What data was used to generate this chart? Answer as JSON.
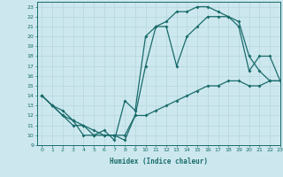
{
  "xlabel": "Humidex (Indice chaleur)",
  "xlim": [
    -0.5,
    23
  ],
  "ylim": [
    9,
    23.5
  ],
  "yticks": [
    9,
    10,
    11,
    12,
    13,
    14,
    15,
    16,
    17,
    18,
    19,
    20,
    21,
    22,
    23
  ],
  "xticks": [
    0,
    1,
    2,
    3,
    4,
    5,
    6,
    7,
    8,
    9,
    10,
    11,
    12,
    13,
    14,
    15,
    16,
    17,
    18,
    19,
    20,
    21,
    22,
    23
  ],
  "bg_color": "#cce8ee",
  "line_color": "#1a6b6b",
  "grid_color": "#b8d8e0",
  "line1_x": [
    0,
    1,
    2,
    3,
    4,
    5,
    6,
    7,
    8,
    9,
    10,
    11,
    12,
    13,
    14,
    15,
    16,
    17,
    18,
    19,
    20,
    21,
    22,
    23
  ],
  "line1_y": [
    14,
    13,
    12.5,
    11.5,
    10,
    10,
    10.5,
    9.5,
    13.5,
    12.5,
    20,
    21,
    21.5,
    22.5,
    22.5,
    23,
    23,
    22.5,
    22,
    21.5,
    18,
    16.5,
    15.5,
    15.5
  ],
  "line2_x": [
    0,
    1,
    2,
    3,
    4,
    5,
    6,
    7,
    8,
    9,
    10,
    11,
    12,
    13,
    14,
    15,
    16,
    17,
    18,
    19,
    20,
    21,
    22,
    23
  ],
  "line2_y": [
    14,
    13,
    12,
    11.5,
    11,
    10,
    10,
    10,
    9.5,
    12,
    17,
    21,
    21,
    17,
    20,
    21,
    22,
    22,
    22,
    21,
    16.5,
    18,
    18,
    15.5
  ],
  "line3_x": [
    0,
    1,
    2,
    3,
    4,
    5,
    6,
    7,
    8,
    9,
    10,
    11,
    12,
    13,
    14,
    15,
    16,
    17,
    18,
    19,
    20,
    21,
    22,
    23
  ],
  "line3_y": [
    14,
    13,
    12,
    11,
    11,
    10.5,
    10,
    10,
    10,
    12,
    12,
    12.5,
    13,
    13.5,
    14,
    14.5,
    15,
    15,
    15.5,
    15.5,
    15,
    15,
    15.5,
    15.5
  ]
}
